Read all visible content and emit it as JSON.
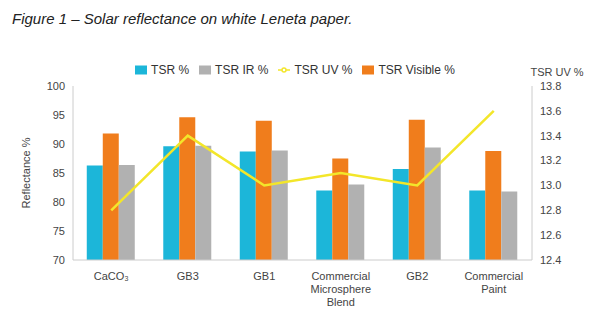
{
  "chart_data": {
    "type": "bar",
    "title": "Figure 1 – Solar reflectance on white Leneta paper.",
    "ylabel": "Reflectance %",
    "y2label": "TSR UV %",
    "categories": [
      "CaCO₃",
      "GB3",
      "GB1",
      "Commercial Microsphere Blend",
      "GB2",
      "Commercial Paint"
    ],
    "series": [
      {
        "name": "TSR %",
        "color": "#1cb6d9",
        "values": [
          86.3,
          89.6,
          88.7,
          82.0,
          85.7,
          82.0
        ]
      },
      {
        "name": "TSR Visible %",
        "color": "#f07d1c",
        "values": [
          91.8,
          94.6,
          94.0,
          87.5,
          94.2,
          88.8
        ]
      },
      {
        "name": "TSR IR %",
        "color": "#b1b1b1",
        "values": [
          86.4,
          89.7,
          88.9,
          83.0,
          89.4,
          81.8
        ]
      },
      {
        "name": "TSR UV %",
        "type": "line",
        "axis": "y2",
        "color": "#f3e62a",
        "values": [
          12.8,
          13.4,
          13.0,
          13.1,
          13.0,
          13.6
        ]
      }
    ],
    "ylim": [
      70,
      100
    ],
    "yticks": [
      70,
      75,
      80,
      85,
      90,
      95,
      100
    ],
    "y2lim": [
      12.4,
      13.8
    ],
    "y2ticks": [
      12.4,
      12.6,
      12.8,
      {
        "value": 13,
        "label": "13.0"
      },
      13.2,
      13.4,
      13.6,
      13.8
    ],
    "legend": "top"
  }
}
